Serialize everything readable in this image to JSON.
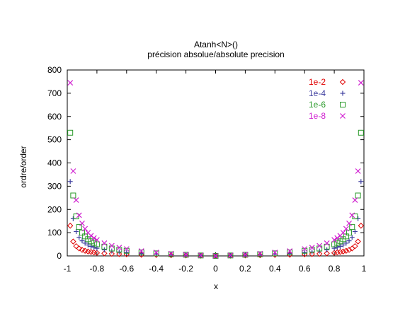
{
  "chart_data": {
    "type": "scatter",
    "title": "Atanh<N>()",
    "subtitle": "précision absolue/absolute precision",
    "xlabel": "x",
    "ylabel": "ordre/order",
    "xlim": [
      -1,
      1
    ],
    "ylim": [
      0,
      800
    ],
    "xticks": [
      "-1",
      "-0.8",
      "-0.6",
      "-0.4",
      "-0.2",
      "0",
      "0.2",
      "0.4",
      "0.6",
      "0.8",
      "1"
    ],
    "yticks": [
      "0",
      "100",
      "200",
      "300",
      "400",
      "500",
      "600",
      "700",
      "800"
    ],
    "grid": false,
    "legend_position": "top-right",
    "series": [
      {
        "name": "1e-2",
        "color": "#e00000",
        "marker": "diamond",
        "x": [
          -0.98,
          -0.96,
          -0.94,
          -0.92,
          -0.9,
          -0.88,
          -0.86,
          -0.84,
          -0.82,
          -0.8,
          -0.75,
          -0.7,
          -0.65,
          -0.6,
          -0.5,
          -0.4,
          -0.3,
          -0.2,
          -0.1,
          0,
          0.1,
          0.2,
          0.3,
          0.4,
          0.5,
          0.6,
          0.65,
          0.7,
          0.75,
          0.8,
          0.82,
          0.84,
          0.86,
          0.88,
          0.9,
          0.92,
          0.94,
          0.96,
          0.98
        ],
        "y": [
          130,
          62,
          42,
          32,
          26,
          22,
          19,
          17,
          15,
          13,
          11,
          9,
          8,
          7,
          5,
          4,
          3,
          2,
          1,
          0,
          1,
          2,
          3,
          4,
          5,
          7,
          8,
          9,
          11,
          13,
          15,
          17,
          19,
          22,
          26,
          32,
          42,
          62,
          130
        ]
      },
      {
        "name": "1e-4",
        "color": "#4040a0",
        "marker": "plus",
        "x": [
          -0.98,
          -0.96,
          -0.94,
          -0.92,
          -0.9,
          -0.88,
          -0.86,
          -0.84,
          -0.82,
          -0.8,
          -0.75,
          -0.7,
          -0.65,
          -0.6,
          -0.5,
          -0.4,
          -0.3,
          -0.2,
          -0.1,
          0,
          0.1,
          0.2,
          0.3,
          0.4,
          0.5,
          0.6,
          0.65,
          0.7,
          0.75,
          0.8,
          0.82,
          0.84,
          0.86,
          0.88,
          0.9,
          0.92,
          0.94,
          0.96,
          0.98
        ],
        "y": [
          320,
          160,
          105,
          80,
          65,
          55,
          47,
          41,
          37,
          33,
          26,
          21,
          17,
          14,
          10,
          7,
          5,
          3,
          2,
          0,
          2,
          3,
          5,
          7,
          10,
          14,
          17,
          21,
          26,
          33,
          37,
          41,
          47,
          55,
          65,
          80,
          105,
          160,
          320
        ]
      },
      {
        "name": "1e-6",
        "color": "#2a9a2a",
        "marker": "square",
        "x": [
          -0.98,
          -0.96,
          -0.94,
          -0.92,
          -0.9,
          -0.88,
          -0.86,
          -0.84,
          -0.82,
          -0.8,
          -0.75,
          -0.7,
          -0.65,
          -0.6,
          -0.5,
          -0.4,
          -0.3,
          -0.2,
          -0.1,
          0,
          0.1,
          0.2,
          0.3,
          0.4,
          0.5,
          0.6,
          0.65,
          0.7,
          0.75,
          0.8,
          0.82,
          0.84,
          0.86,
          0.88,
          0.9,
          0.92,
          0.94,
          0.96,
          0.98
        ],
        "y": [
          530,
          260,
          170,
          125,
          100,
          84,
          72,
          63,
          56,
          50,
          40,
          32,
          26,
          22,
          15,
          11,
          7,
          5,
          2,
          0,
          2,
          5,
          7,
          11,
          15,
          22,
          26,
          32,
          40,
          50,
          56,
          63,
          72,
          84,
          100,
          125,
          170,
          260,
          530
        ]
      },
      {
        "name": "1e-8",
        "color": "#d020d0",
        "marker": "cross",
        "x": [
          -0.98,
          -0.96,
          -0.94,
          -0.92,
          -0.9,
          -0.88,
          -0.86,
          -0.84,
          -0.82,
          -0.8,
          -0.75,
          -0.7,
          -0.65,
          -0.6,
          -0.5,
          -0.4,
          -0.3,
          -0.2,
          -0.1,
          0,
          0.1,
          0.2,
          0.3,
          0.4,
          0.5,
          0.6,
          0.65,
          0.7,
          0.75,
          0.8,
          0.82,
          0.84,
          0.86,
          0.88,
          0.9,
          0.92,
          0.94,
          0.96,
          0.98
        ],
        "y": [
          745,
          365,
          240,
          175,
          140,
          117,
          100,
          87,
          77,
          69,
          55,
          44,
          36,
          30,
          21,
          15,
          10,
          6,
          3,
          0,
          3,
          6,
          10,
          15,
          21,
          30,
          36,
          44,
          55,
          69,
          77,
          87,
          100,
          117,
          140,
          175,
          240,
          365,
          745
        ]
      }
    ]
  }
}
